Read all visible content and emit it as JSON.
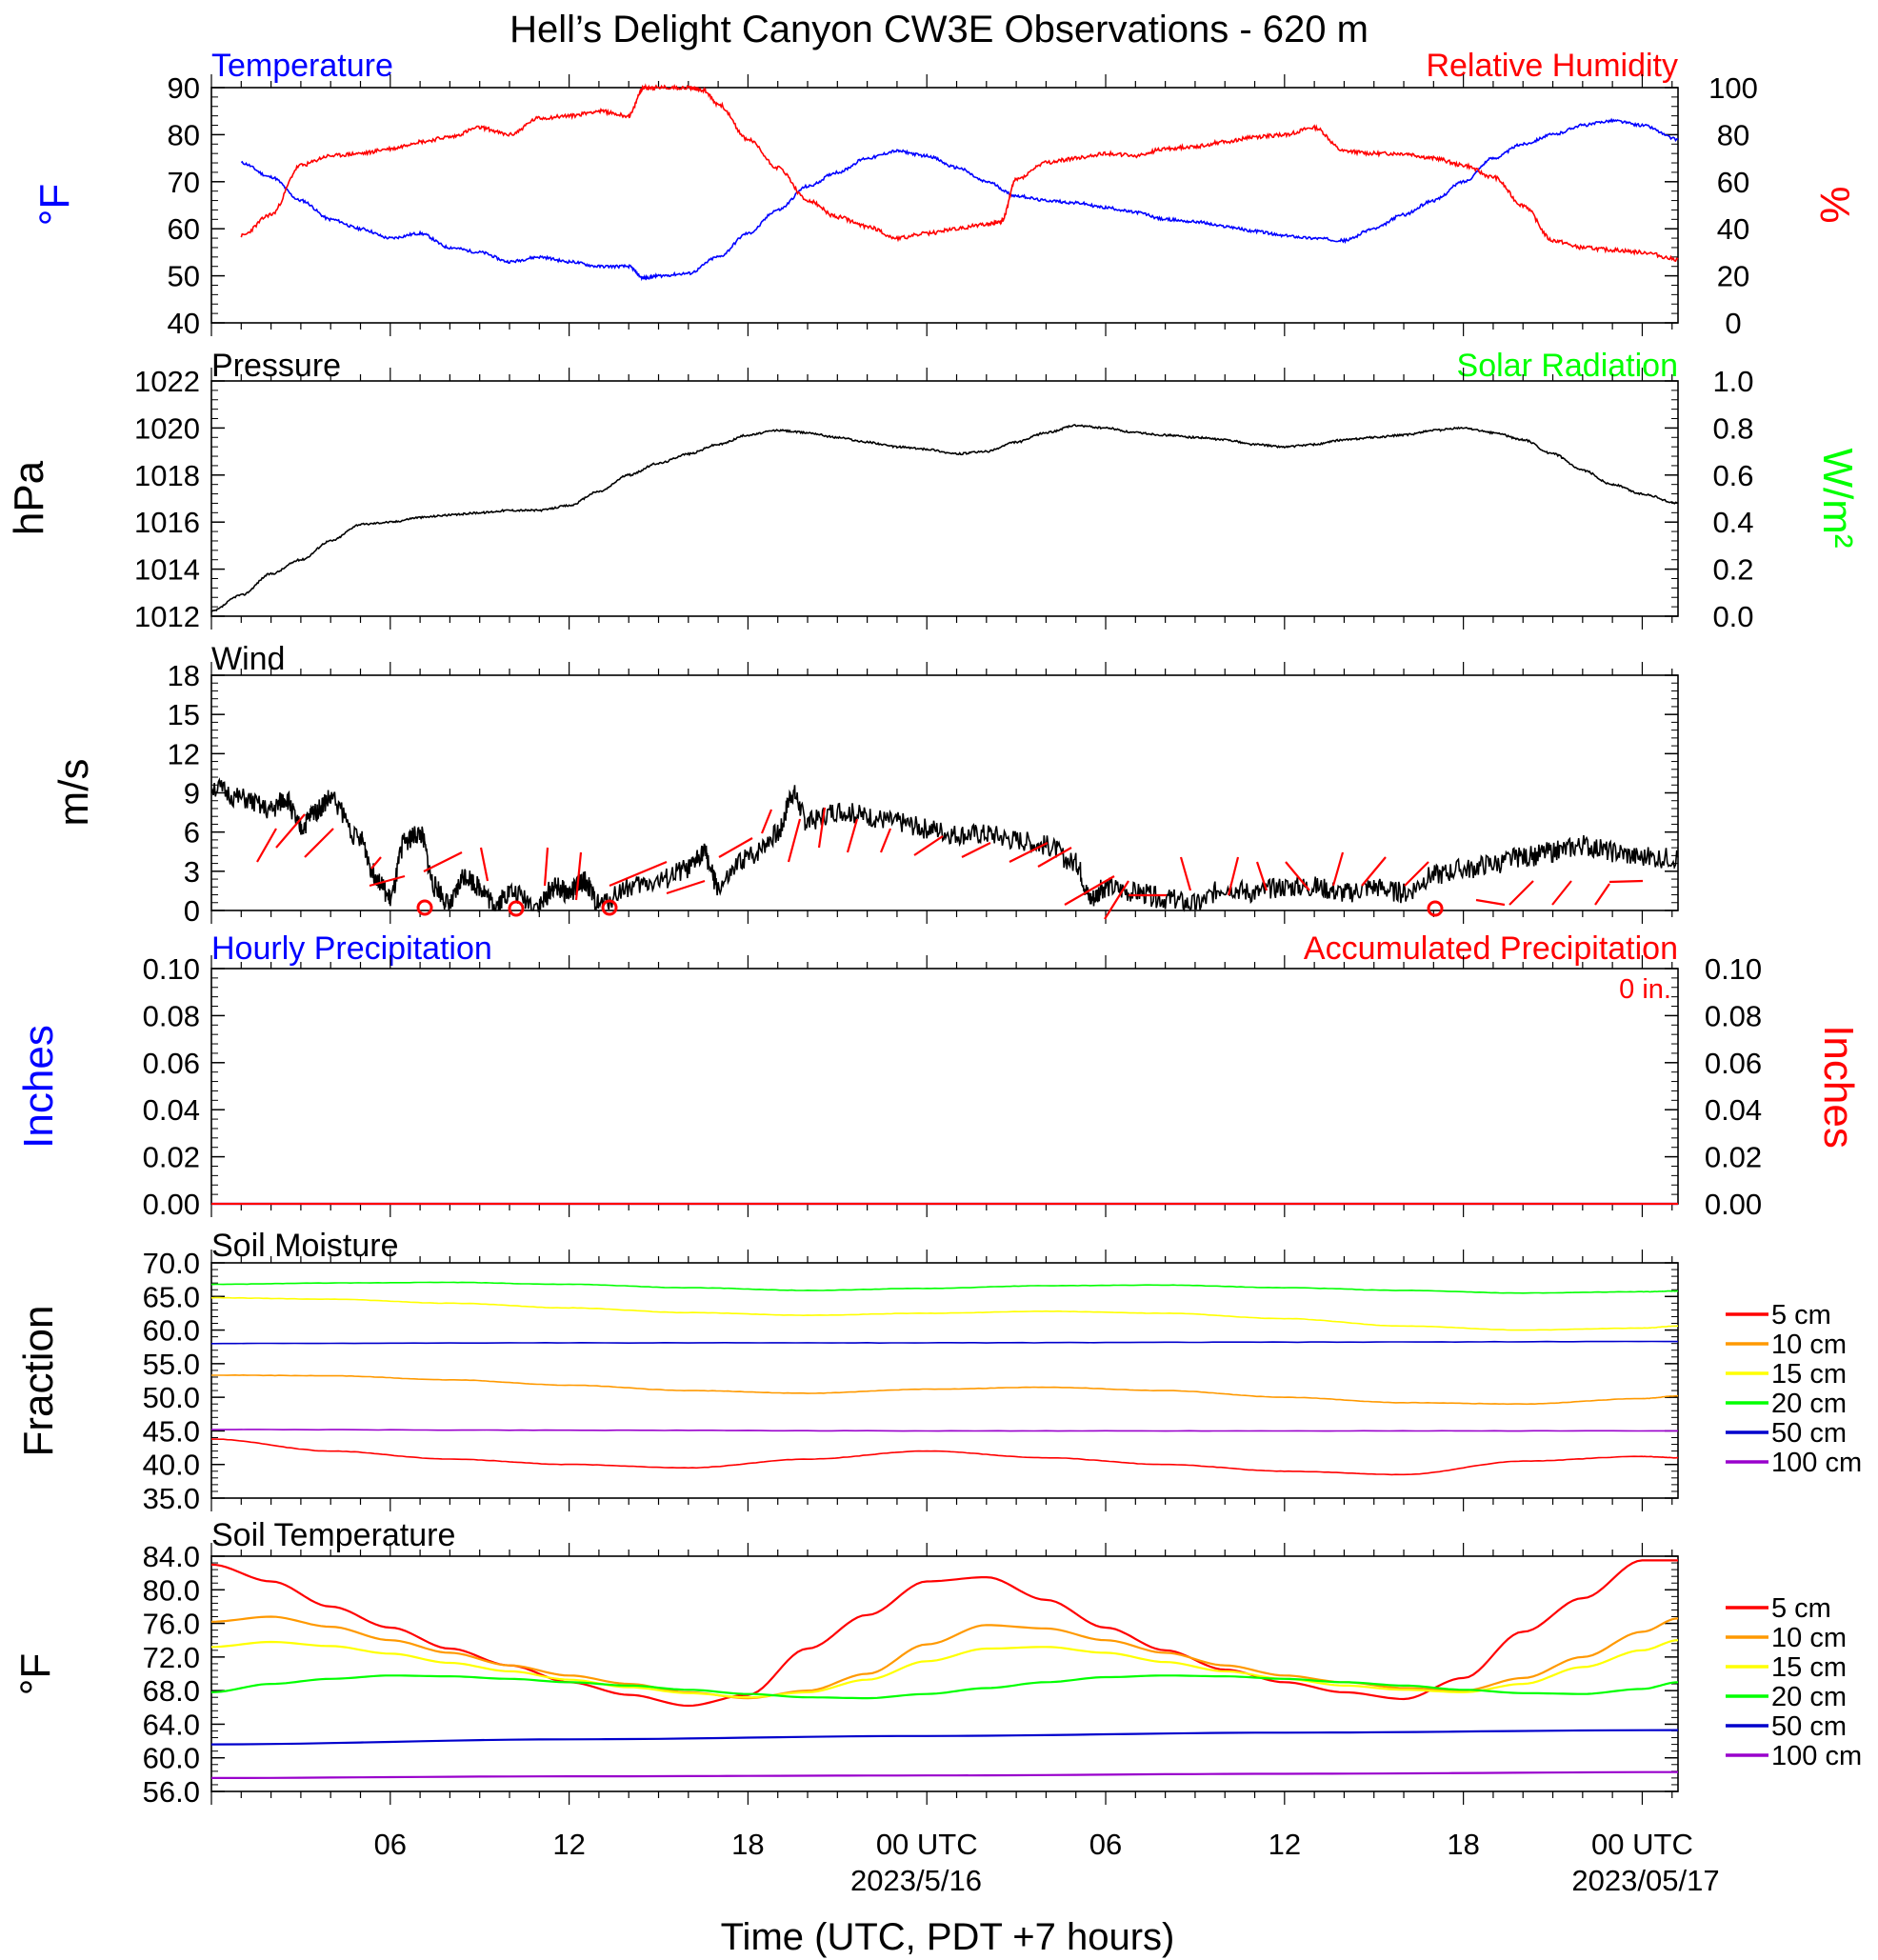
{
  "title": "Hell’s Delight Canyon CW3E Observations - 620 m",
  "xaxis": {
    "label": "Time (UTC, PDT +7 hours)",
    "ticks": [
      "06",
      "12",
      "18",
      "00 UTC",
      "06",
      "12",
      "18",
      "00 UTC"
    ],
    "dates": [
      "2023/5/16",
      "2023/05/17"
    ]
  },
  "colors": {
    "blue": "#0000ff",
    "red": "#ff0000",
    "green": "#00ff00",
    "black": "#000000",
    "orange": "#ff9900",
    "yellow": "#ffff00",
    "purple": "#9900cc",
    "dkblue": "#0000cc"
  },
  "panels": {
    "temp_rh": {
      "left_title": "Temperature",
      "right_title": "Relative Humidity",
      "left_unit": "°F",
      "right_unit": "%",
      "left_ticks": [
        "40",
        "50",
        "60",
        "70",
        "80",
        "90"
      ],
      "right_ticks": [
        "0",
        "20",
        "40",
        "60",
        "80",
        "100"
      ]
    },
    "pressure": {
      "left_title": "Pressure",
      "right_title": "Solar Radiation",
      "left_unit": "hPa",
      "right_unit": "W/m²",
      "left_ticks": [
        "1012",
        "1014",
        "1016",
        "1018",
        "1020",
        "1022"
      ],
      "right_ticks": [
        "0.0",
        "0.2",
        "0.4",
        "0.6",
        "0.8",
        "1.0"
      ]
    },
    "wind": {
      "left_title": "Wind",
      "left_unit": "m/s",
      "left_ticks": [
        "0",
        "3",
        "6",
        "9",
        "12",
        "15",
        "18"
      ]
    },
    "precip": {
      "left_title": "Hourly Precipitation",
      "right_title": "Accumulated Precipitation",
      "total_label": "0 in.",
      "left_unit": "Inches",
      "right_unit": "Inches",
      "left_ticks": [
        "0.00",
        "0.02",
        "0.04",
        "0.06",
        "0.08",
        "0.10"
      ],
      "right_ticks": [
        "0.00",
        "0.02",
        "0.04",
        "0.06",
        "0.08",
        "0.10"
      ]
    },
    "soil_moisture": {
      "left_title": "Soil Moisture",
      "left_unit": "Fraction",
      "left_ticks": [
        "35.0",
        "40.0",
        "45.0",
        "50.0",
        "55.0",
        "60.0",
        "65.0",
        "70.0"
      ],
      "legend": [
        "5 cm",
        "10 cm",
        "15 cm",
        "20 cm",
        "50 cm",
        "100 cm"
      ]
    },
    "soil_temp": {
      "left_title": "Soil Temperature",
      "left_unit": "°F",
      "left_ticks": [
        "56.0",
        "60.0",
        "64.0",
        "68.0",
        "72.0",
        "76.0",
        "80.0",
        "84.0"
      ],
      "legend": [
        "5 cm",
        "10 cm",
        "15 cm",
        "20 cm",
        "50 cm",
        "100 cm"
      ]
    }
  },
  "chart_data": [
    {
      "type": "line",
      "title": "Temperature / Relative Humidity",
      "x_unit": "hours since 2023-05-15 00 UTC",
      "ylim": [
        40,
        90
      ],
      "y2lim": [
        0,
        100
      ],
      "series": [
        {
          "name": "Temperature",
          "axis": "left",
          "color": "#0000ff",
          "x": [
            1,
            2,
            3,
            4,
            5,
            6,
            7,
            8,
            9,
            10,
            11,
            12,
            13,
            14,
            14.5,
            15,
            16,
            17,
            18,
            19,
            20,
            21,
            22,
            23,
            24,
            25,
            26,
            27,
            28,
            29,
            30,
            31,
            32,
            33,
            34,
            35,
            36,
            37,
            38,
            39,
            40,
            41,
            42,
            43,
            44,
            45,
            46,
            47,
            48,
            49.2
          ],
          "y": [
            74,
            71,
            66,
            62,
            60,
            58,
            59,
            56,
            55,
            53,
            54,
            53,
            52,
            52,
            49.5,
            50,
            50.5,
            54,
            59,
            64,
            69,
            72,
            75,
            76.5,
            75.5,
            73,
            70,
            67,
            66,
            65.5,
            64.5,
            63.5,
            62,
            61.5,
            60.5,
            59.5,
            58.5,
            58,
            57.5,
            60,
            63,
            66,
            70,
            75,
            78,
            80,
            82,
            83,
            82,
            79
          ]
        },
        {
          "name": "Relative Humidity",
          "axis": "right",
          "color": "#ff0000",
          "x": [
            1,
            2,
            3,
            4,
            5,
            6,
            7,
            8,
            9,
            10,
            11,
            12,
            13,
            14,
            14.5,
            15,
            16,
            16.5,
            17,
            18,
            19,
            20,
            21,
            22,
            23,
            24,
            25,
            26,
            26.5,
            27,
            28,
            29,
            30,
            31,
            32,
            33,
            34,
            35,
            36,
            37,
            38,
            39,
            40,
            41,
            42,
            43,
            44,
            45,
            46,
            47,
            48,
            49.2
          ],
          "y": [
            37,
            46,
            67,
            71,
            72,
            74,
            77,
            79,
            83,
            80,
            87,
            88,
            90,
            88,
            100,
            100,
            100,
            99,
            93,
            78,
            66,
            52,
            45,
            41,
            36,
            38,
            40,
            42,
            43,
            61,
            68,
            70,
            72,
            71,
            74,
            75,
            77,
            79,
            80,
            83,
            73,
            72,
            72,
            70,
            67,
            62,
            50,
            35,
            32,
            31,
            30,
            27
          ]
        }
      ]
    },
    {
      "type": "line",
      "title": "Pressure",
      "x_unit": "hours since 2023-05-15 00 UTC",
      "ylim": [
        1012,
        1022
      ],
      "y2lim": [
        0,
        1
      ],
      "series": [
        {
          "name": "Pressure",
          "axis": "left",
          "color": "#000000",
          "x": [
            0,
            1,
            2,
            3,
            4,
            5,
            6,
            7,
            8,
            9,
            10,
            11,
            12,
            13,
            14,
            15,
            16,
            17,
            18,
            19,
            20,
            21,
            22,
            23,
            24,
            25,
            26,
            27,
            28,
            29,
            30,
            31,
            32,
            33,
            34,
            35,
            36,
            37,
            38,
            39,
            40,
            41,
            42,
            43,
            44,
            45,
            46,
            47,
            48,
            49.2
          ],
          "y": [
            1012.2,
            1012.9,
            1013.8,
            1014.4,
            1015.2,
            1015.9,
            1016,
            1016.2,
            1016.3,
            1016.4,
            1016.5,
            1016.5,
            1016.7,
            1017.3,
            1018,
            1018.5,
            1018.9,
            1019.3,
            1019.7,
            1019.9,
            1019.8,
            1019.6,
            1019.4,
            1019.2,
            1019.1,
            1018.9,
            1019,
            1019.4,
            1019.8,
            1020.1,
            1020,
            1019.8,
            1019.7,
            1019.6,
            1019.5,
            1019.3,
            1019.2,
            1019.3,
            1019.5,
            1019.6,
            1019.7,
            1019.9,
            1020,
            1019.8,
            1019.5,
            1018.9,
            1018.2,
            1017.6,
            1017.2,
            1016.8
          ]
        }
      ]
    },
    {
      "type": "line",
      "title": "Wind",
      "x_unit": "hours since 2023-05-15 00 UTC",
      "ylim": [
        0,
        20
      ],
      "series": [
        {
          "name": "Wind speed",
          "color": "#000000",
          "x": [
            0,
            1,
            2,
            2.5,
            3,
            3.5,
            4,
            5,
            5.5,
            6,
            6.5,
            7,
            7.5,
            8,
            8.5,
            9,
            9.5,
            10,
            11,
            11.5,
            12,
            12.5,
            13,
            14,
            15,
            16,
            16.5,
            17,
            18,
            19,
            19.5,
            20,
            21,
            22,
            23,
            24,
            25,
            26,
            27,
            28,
            29,
            29.5,
            30,
            31,
            32,
            33,
            34,
            35,
            36,
            37,
            38,
            39,
            40,
            41,
            42,
            43,
            44,
            45,
            46,
            47,
            48,
            49.2
          ],
          "y": [
            10.5,
            9.5,
            8.5,
            9.5,
            7,
            8.5,
            9.5,
            6,
            3,
            1,
            6,
            6.5,
            2,
            0.5,
            3,
            2,
            0.5,
            1.5,
            0.5,
            2,
            1.5,
            2.5,
            0.5,
            2,
            2.5,
            3.5,
            5,
            2,
            4.5,
            6.5,
            10,
            7.5,
            8.5,
            8,
            7.5,
            7,
            6.5,
            6.5,
            6,
            5.5,
            4,
            1,
            2,
            1.5,
            1,
            0.5,
            2,
            1.5,
            2,
            2,
            1.5,
            2,
            1.5,
            3,
            3.5,
            4,
            4.5,
            5,
            5.5,
            5,
            4.5,
            4.5
          ]
        }
      ]
    },
    {
      "type": "line",
      "title": "Precipitation",
      "x_unit": "hours since 2023-05-15 00 UTC",
      "ylim": [
        0,
        0.1
      ],
      "series": [
        {
          "name": "Hourly Precipitation",
          "color": "#0000ff",
          "x": [
            0,
            49.2
          ],
          "y": [
            0,
            0
          ]
        },
        {
          "name": "Accumulated Precipitation",
          "color": "#ff0000",
          "x": [
            0,
            49.2
          ],
          "y": [
            0,
            0
          ]
        }
      ]
    },
    {
      "type": "line",
      "title": "Soil Moisture",
      "x_unit": "hours since 2023-05-15 00 UTC",
      "ylim": [
        35,
        70
      ],
      "series": [
        {
          "name": "5 cm",
          "color": "#ff0000",
          "x": [
            0,
            4,
            8,
            12,
            16,
            20,
            24,
            28,
            32,
            36,
            40,
            44,
            48,
            49.2
          ],
          "y": [
            43.8,
            42,
            40.8,
            40,
            39.5,
            40.8,
            42,
            41,
            40,
            39,
            38.5,
            40.5,
            41.2,
            41
          ]
        },
        {
          "name": "10 cm",
          "color": "#ff9900",
          "x": [
            0,
            4,
            8,
            12,
            16,
            20,
            24,
            28,
            32,
            36,
            40,
            44,
            48,
            49.2
          ],
          "y": [
            53.3,
            53.2,
            52.6,
            51.8,
            51,
            50.6,
            51.2,
            51.5,
            51,
            50,
            49.2,
            49,
            49.8,
            50.2
          ]
        },
        {
          "name": "15 cm",
          "color": "#ffff00",
          "x": [
            0,
            4,
            8,
            12,
            16,
            20,
            24,
            28,
            32,
            36,
            40,
            44,
            48,
            49.2
          ],
          "y": [
            64.8,
            64.6,
            64,
            63.3,
            62.6,
            62.2,
            62.5,
            62.8,
            62.5,
            61.7,
            60.6,
            60,
            60.3,
            60.6
          ]
        },
        {
          "name": "20 cm",
          "color": "#00ff00",
          "x": [
            0,
            4,
            8,
            12,
            16,
            20,
            24,
            28,
            32,
            36,
            40,
            44,
            48,
            49.2
          ],
          "y": [
            66.8,
            67,
            67.1,
            66.8,
            66.3,
            65.9,
            66.2,
            66.6,
            66.7,
            66.3,
            65.9,
            65.5,
            65.7,
            65.8
          ]
        },
        {
          "name": "50 cm",
          "color": "#0000cc",
          "x": [
            0,
            12,
            24,
            36,
            49.2
          ],
          "y": [
            58,
            58.1,
            58.1,
            58.2,
            58.3
          ]
        },
        {
          "name": "100 cm",
          "color": "#9900cc",
          "x": [
            0,
            12,
            24,
            36,
            49.2
          ],
          "y": [
            45.2,
            45.1,
            45,
            45,
            45
          ]
        }
      ]
    },
    {
      "type": "line",
      "title": "Soil Temperature",
      "x_unit": "hours since 2023-05-15 00 UTC",
      "ylim": [
        56,
        84
      ],
      "series": [
        {
          "name": "5 cm",
          "color": "#ff0000",
          "x": [
            0,
            2,
            4,
            6,
            8,
            10,
            12,
            14,
            16,
            18,
            20,
            22,
            24,
            26,
            28,
            30,
            32,
            34,
            36,
            38,
            40,
            42,
            44,
            46,
            48,
            49.2
          ],
          "y": [
            83,
            81,
            78,
            75.5,
            73,
            71,
            69,
            67.5,
            66.2,
            67.5,
            73,
            77,
            81,
            81.5,
            78.8,
            75.5,
            72.8,
            70.5,
            69,
            67.8,
            67,
            69.5,
            75,
            79,
            83.5,
            83.5
          ]
        },
        {
          "name": "10 cm",
          "color": "#ff9900",
          "x": [
            0,
            2,
            4,
            6,
            8,
            10,
            12,
            14,
            16,
            18,
            20,
            22,
            24,
            26,
            28,
            30,
            32,
            34,
            36,
            38,
            40,
            42,
            44,
            46,
            48,
            49.2
          ],
          "y": [
            76.2,
            76.8,
            75.6,
            74,
            72.5,
            71,
            69.8,
            68.8,
            67.8,
            67.1,
            68,
            70,
            73.5,
            75.8,
            75.4,
            74,
            72.5,
            71,
            69.8,
            69,
            68.3,
            68,
            69.5,
            72,
            75,
            76.6
          ]
        },
        {
          "name": "15 cm",
          "color": "#ffff00",
          "x": [
            0,
            2,
            4,
            6,
            8,
            10,
            12,
            14,
            16,
            18,
            20,
            22,
            24,
            26,
            28,
            30,
            32,
            34,
            36,
            38,
            40,
            42,
            44,
            46,
            48,
            49.2
          ],
          "y": [
            73.2,
            73.8,
            73.3,
            72.4,
            71.3,
            70.3,
            69.3,
            68.4,
            67.7,
            67.2,
            67.8,
            69.3,
            71.5,
            73,
            73.2,
            72.5,
            71.4,
            70.3,
            69.4,
            68.6,
            68.1,
            67.8,
            68.8,
            70.8,
            72.8,
            74
          ]
        },
        {
          "name": "20 cm",
          "color": "#00ff00",
          "x": [
            0,
            2,
            4,
            6,
            8,
            10,
            12,
            14,
            16,
            18,
            20,
            22,
            24,
            26,
            28,
            30,
            32,
            34,
            36,
            38,
            40,
            42,
            44,
            46,
            48,
            49.2
          ],
          "y": [
            67.8,
            68.8,
            69.4,
            69.8,
            69.7,
            69.4,
            69,
            68.6,
            68.1,
            67.6,
            67.2,
            67.1,
            67.6,
            68.3,
            69,
            69.6,
            69.8,
            69.7,
            69.4,
            69,
            68.6,
            68.1,
            67.7,
            67.6,
            68.2,
            69
          ]
        },
        {
          "name": "50 cm",
          "color": "#0000cc",
          "x": [
            0,
            12,
            24,
            36,
            49.2
          ],
          "y": [
            61.6,
            62.2,
            62.6,
            63,
            63.3
          ]
        },
        {
          "name": "100 cm",
          "color": "#9900cc",
          "x": [
            0,
            12,
            24,
            36,
            49.2
          ],
          "y": [
            57.6,
            57.8,
            57.9,
            58.1,
            58.3
          ]
        }
      ]
    }
  ]
}
